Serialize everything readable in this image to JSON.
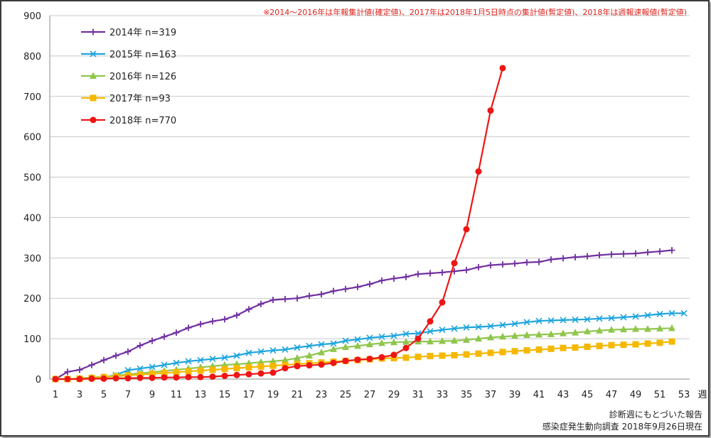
{
  "note": "※2014～2016年は年報集計値(確定値)、2017年は2018年1月5日時点の集計値(暫定値)、2018年は週報速報値(暫定値)",
  "source_line1": "診断週にもとづいた報告",
  "source_line2": "感染症発生動向調査 2018年9月26日現在",
  "chart_data": {
    "type": "line",
    "xlabel": "週",
    "ylabel": "",
    "title": "",
    "xlim": [
      1,
      53
    ],
    "ylim": [
      0,
      900
    ],
    "y_ticks": [
      0,
      100,
      200,
      300,
      400,
      500,
      600,
      700,
      800,
      900
    ],
    "x_ticks": [
      1,
      3,
      5,
      7,
      9,
      11,
      13,
      15,
      17,
      19,
      21,
      23,
      25,
      27,
      29,
      31,
      33,
      35,
      37,
      39,
      41,
      43,
      45,
      47,
      49,
      51,
      53
    ],
    "grid": "horizontal",
    "legend_position": "top-left",
    "series": [
      {
        "name": "2014年 n=319",
        "color": "#7030a0",
        "marker": "plus",
        "x": [
          1,
          2,
          3,
          4,
          5,
          6,
          7,
          8,
          9,
          10,
          11,
          12,
          13,
          14,
          15,
          16,
          17,
          18,
          19,
          20,
          21,
          22,
          23,
          24,
          25,
          26,
          27,
          28,
          29,
          30,
          31,
          32,
          33,
          34,
          35,
          36,
          37,
          38,
          39,
          40,
          41,
          42,
          43,
          44,
          45,
          46,
          47,
          48,
          49,
          50,
          51,
          52
        ],
        "values": [
          0,
          18,
          23,
          35,
          47,
          58,
          68,
          83,
          95,
          105,
          115,
          127,
          136,
          143,
          148,
          158,
          173,
          186,
          196,
          198,
          200,
          206,
          210,
          218,
          223,
          228,
          235,
          244,
          249,
          253,
          260,
          262,
          264,
          267,
          270,
          277,
          282,
          284,
          286,
          289,
          290,
          296,
          299,
          302,
          304,
          307,
          309,
          310,
          311,
          314,
          316,
          319
        ]
      },
      {
        "name": "2015年 n=163",
        "color": "#1ca4dd",
        "marker": "x",
        "x": [
          1,
          2,
          3,
          4,
          5,
          6,
          7,
          8,
          9,
          10,
          11,
          12,
          13,
          14,
          15,
          16,
          17,
          18,
          19,
          20,
          21,
          22,
          23,
          24,
          25,
          26,
          27,
          28,
          29,
          30,
          31,
          32,
          33,
          34,
          35,
          36,
          37,
          38,
          39,
          40,
          41,
          42,
          43,
          44,
          45,
          46,
          47,
          48,
          49,
          50,
          51,
          52,
          53
        ],
        "values": [
          0,
          0,
          1,
          3,
          5,
          10,
          22,
          26,
          30,
          35,
          40,
          44,
          47,
          50,
          53,
          58,
          65,
          68,
          71,
          73,
          78,
          82,
          86,
          88,
          95,
          98,
          102,
          105,
          107,
          112,
          113,
          118,
          122,
          125,
          128,
          129,
          131,
          134,
          137,
          141,
          144,
          145,
          146,
          147,
          148,
          150,
          151,
          153,
          155,
          158,
          161,
          163,
          163
        ]
      },
      {
        "name": "2016年 n=126",
        "color": "#8fc64c",
        "marker": "triangle",
        "x": [
          1,
          2,
          3,
          4,
          5,
          6,
          7,
          8,
          9,
          10,
          11,
          12,
          13,
          14,
          15,
          16,
          17,
          18,
          19,
          20,
          21,
          22,
          23,
          24,
          25,
          26,
          27,
          28,
          29,
          30,
          31,
          32,
          33,
          34,
          35,
          36,
          37,
          38,
          39,
          40,
          41,
          42,
          43,
          44,
          45,
          46,
          47,
          48,
          49,
          50,
          51,
          52
        ],
        "values": [
          0,
          0,
          2,
          4,
          6,
          8,
          12,
          14,
          17,
          20,
          23,
          26,
          29,
          32,
          35,
          37,
          39,
          42,
          44,
          47,
          52,
          58,
          66,
          74,
          79,
          82,
          86,
          89,
          91,
          92,
          93,
          93,
          94,
          95,
          97,
          100,
          103,
          105,
          107,
          109,
          110,
          111,
          113,
          115,
          118,
          120,
          122,
          123,
          124,
          124,
          125,
          126
        ]
      },
      {
        "name": "2017年 n=93",
        "color": "#f5b800",
        "marker": "square",
        "x": [
          1,
          2,
          3,
          4,
          5,
          6,
          7,
          8,
          9,
          10,
          11,
          12,
          13,
          14,
          15,
          16,
          17,
          18,
          19,
          20,
          21,
          22,
          23,
          24,
          25,
          26,
          27,
          28,
          29,
          30,
          31,
          32,
          33,
          34,
          35,
          36,
          37,
          38,
          39,
          40,
          41,
          42,
          43,
          44,
          45,
          46,
          47,
          48,
          49,
          50,
          51,
          52
        ],
        "values": [
          0,
          0,
          1,
          3,
          5,
          7,
          9,
          11,
          13,
          15,
          17,
          19,
          21,
          23,
          25,
          27,
          29,
          31,
          33,
          35,
          37,
          39,
          41,
          43,
          45,
          47,
          49,
          51,
          52,
          53,
          55,
          57,
          58,
          59,
          61,
          63,
          65,
          67,
          69,
          71,
          73,
          75,
          77,
          78,
          80,
          82,
          84,
          85,
          86,
          88,
          90,
          93
        ]
      },
      {
        "name": "2018年 n=770",
        "color": "#ee1515",
        "marker": "circle",
        "x": [
          1,
          2,
          3,
          4,
          5,
          6,
          7,
          8,
          9,
          10,
          11,
          12,
          13,
          14,
          15,
          16,
          17,
          18,
          19,
          20,
          21,
          22,
          23,
          24,
          25,
          26,
          27,
          28,
          29,
          30,
          31,
          32,
          33,
          34,
          35,
          36,
          37,
          38
        ],
        "values": [
          0,
          0,
          0,
          1,
          1,
          2,
          2,
          3,
          3,
          4,
          4,
          5,
          5,
          6,
          8,
          10,
          12,
          14,
          16,
          27,
          32,
          34,
          36,
          40,
          45,
          48,
          50,
          54,
          60,
          77,
          100,
          143,
          190,
          287,
          371,
          514,
          665,
          770
        ]
      }
    ]
  }
}
